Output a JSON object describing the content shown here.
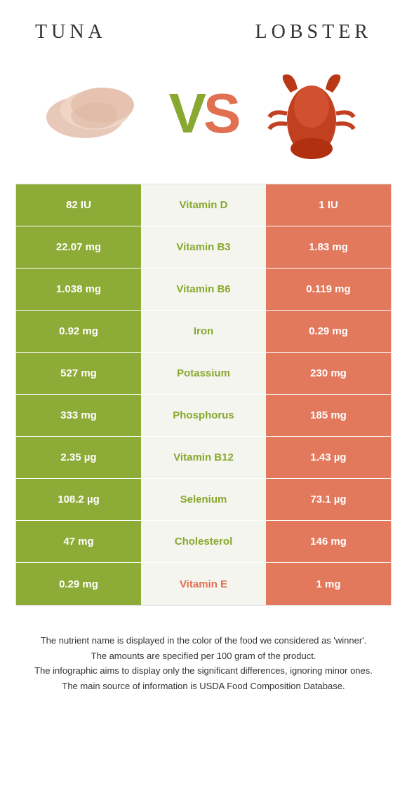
{
  "header": {
    "left_title": "Tuna",
    "right_title": "Lobster"
  },
  "vs": {
    "v": "V",
    "s": "S"
  },
  "colors": {
    "left": "#8dab37",
    "right": "#e2785c",
    "mid_bg": "#f5f5f0",
    "left_text": "#88a82f",
    "right_text": "#e07050"
  },
  "rows": [
    {
      "left": "82 IU",
      "mid": "Vitamin D",
      "right": "1 IU",
      "winner": "left"
    },
    {
      "left": "22.07 mg",
      "mid": "Vitamin B3",
      "right": "1.83 mg",
      "winner": "left"
    },
    {
      "left": "1.038 mg",
      "mid": "Vitamin B6",
      "right": "0.119 mg",
      "winner": "left"
    },
    {
      "left": "0.92 mg",
      "mid": "Iron",
      "right": "0.29 mg",
      "winner": "left"
    },
    {
      "left": "527 mg",
      "mid": "Potassium",
      "right": "230 mg",
      "winner": "left"
    },
    {
      "left": "333 mg",
      "mid": "Phosphorus",
      "right": "185 mg",
      "winner": "left"
    },
    {
      "left": "2.35 µg",
      "mid": "Vitamin B12",
      "right": "1.43 µg",
      "winner": "left"
    },
    {
      "left": "108.2 µg",
      "mid": "Selenium",
      "right": "73.1 µg",
      "winner": "left"
    },
    {
      "left": "47 mg",
      "mid": "Cholesterol",
      "right": "146 mg",
      "winner": "left"
    },
    {
      "left": "0.29 mg",
      "mid": "Vitamin E",
      "right": "1 mg",
      "winner": "right"
    }
  ],
  "footnotes": [
    "The nutrient name is displayed in the color of the food we considered as 'winner'.",
    "The amounts are specified per 100 gram of the product.",
    "The infographic aims to display only the significant differences, ignoring minor ones.",
    "The main source of information is USDA Food Composition Database."
  ]
}
